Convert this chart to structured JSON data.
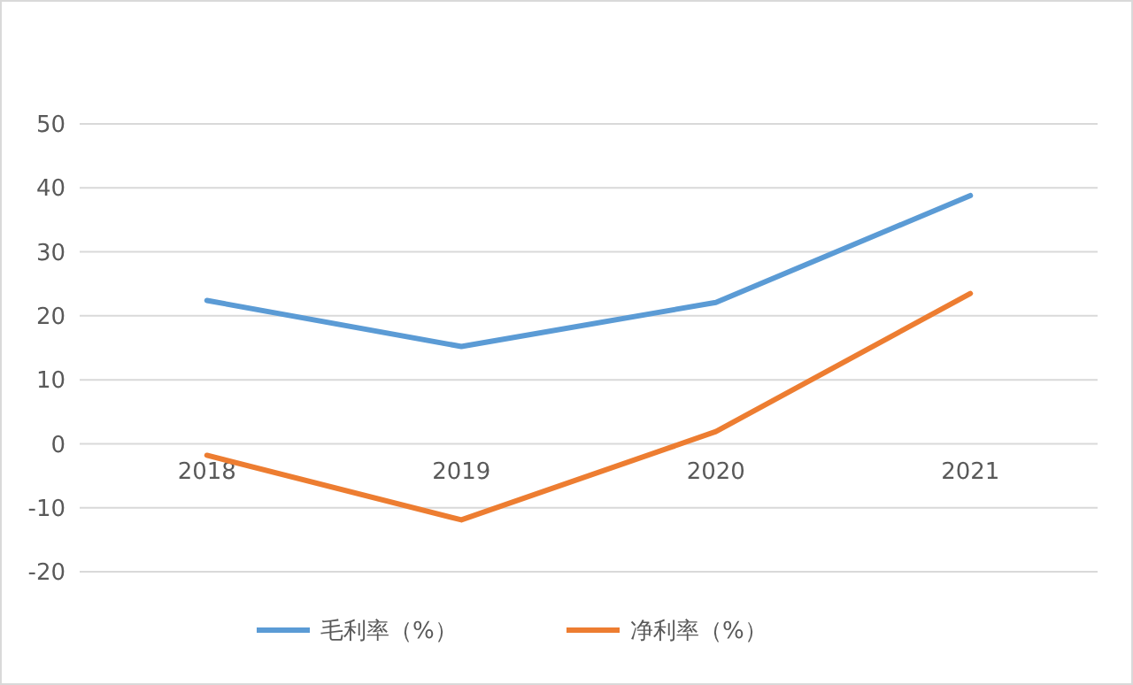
{
  "chart_data": {
    "type": "line",
    "categories": [
      "2018",
      "2019",
      "2020",
      "2021"
    ],
    "series": [
      {
        "name": "毛利率（%）",
        "color": "#5b9bd5",
        "values": [
          22.4,
          15.2,
          22.1,
          38.8
        ]
      },
      {
        "name": "净利率（%）",
        "color": "#ed7d31",
        "values": [
          -1.8,
          -11.9,
          1.9,
          23.5
        ]
      }
    ],
    "ylim": [
      -20,
      50
    ],
    "yticks": [
      -20,
      -10,
      0,
      10,
      20,
      30,
      40,
      50
    ],
    "grid": "y",
    "legend": "bottom",
    "marker": "none",
    "line_style": "solid"
  }
}
